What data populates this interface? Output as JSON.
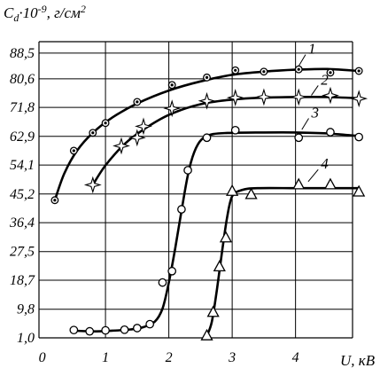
{
  "chart_data": {
    "type": "line",
    "ylabel_main": "C",
    "ylabel_sub": "d",
    "ylabel_rest": "·10",
    "ylabel_exp": "-9",
    "ylabel_units": ", г/см",
    "ylabel_units_exp": "2",
    "xlabel": "U, кВ",
    "xlim": [
      -0.05,
      4.9
    ],
    "ylim": [
      1.0,
      92.0
    ],
    "grid": true,
    "x_ticks": [
      {
        "value": 0,
        "label": "0"
      },
      {
        "value": 1,
        "label": "1"
      },
      {
        "value": 2,
        "label": "2"
      },
      {
        "value": 3,
        "label": "3"
      },
      {
        "value": 4,
        "label": "4"
      }
    ],
    "y_ticks": [
      {
        "value": 1.0,
        "label": "1,0"
      },
      {
        "value": 9.8,
        "label": "9,8"
      },
      {
        "value": 18.7,
        "label": "18,7"
      },
      {
        "value": 27.5,
        "label": "27,5"
      },
      {
        "value": 36.4,
        "label": "36,4"
      },
      {
        "value": 45.2,
        "label": "45,2"
      },
      {
        "value": 54.1,
        "label": "54,1"
      },
      {
        "value": 62.9,
        "label": "62,9"
      },
      {
        "value": 71.8,
        "label": "71,8"
      },
      {
        "value": 80.6,
        "label": "80,6"
      },
      {
        "value": 88.5,
        "label": "88,5"
      }
    ],
    "series": [
      {
        "label": "1",
        "marker": "dotted-circle",
        "label_pos": [
          4.2,
          88.3
        ],
        "label_line_to": [
          4.05,
          84.5
        ],
        "points": [
          [
            0.2,
            43.3
          ],
          [
            0.5,
            58.5
          ],
          [
            0.8,
            64.0
          ],
          [
            1.0,
            67.0
          ],
          [
            1.5,
            73.5
          ],
          [
            2.05,
            78.7
          ],
          [
            2.6,
            81.0
          ],
          [
            3.05,
            83.2
          ],
          [
            3.5,
            82.8
          ],
          [
            4.05,
            83.5
          ],
          [
            4.55,
            82.5
          ],
          [
            5.0,
            83.0
          ]
        ],
        "curve": [
          [
            0.2,
            43.3
          ],
          [
            0.35,
            51.5
          ],
          [
            0.55,
            58.5
          ],
          [
            0.8,
            64.0
          ],
          [
            1.1,
            68.6
          ],
          [
            1.5,
            73.0
          ],
          [
            2.0,
            77.0
          ],
          [
            2.5,
            79.8
          ],
          [
            3.0,
            81.8
          ],
          [
            3.5,
            82.8
          ],
          [
            4.0,
            83.4
          ],
          [
            4.5,
            83.6
          ],
          [
            5.0,
            83.0
          ]
        ]
      },
      {
        "label": "2",
        "marker": "star",
        "label_pos": [
          4.4,
          78.8
        ],
        "label_line_to": [
          4.25,
          75.5
        ],
        "points": [
          [
            0.8,
            48.0
          ],
          [
            1.25,
            60.0
          ],
          [
            1.5,
            62.5
          ],
          [
            1.6,
            66.0
          ],
          [
            2.05,
            71.5
          ],
          [
            2.6,
            73.8
          ],
          [
            3.05,
            74.8
          ],
          [
            3.5,
            75.0
          ],
          [
            4.05,
            75.0
          ],
          [
            4.55,
            75.5
          ],
          [
            5.0,
            74.5
          ]
        ],
        "curve": [
          [
            0.8,
            48.0
          ],
          [
            1.0,
            54.0
          ],
          [
            1.3,
            60.5
          ],
          [
            1.6,
            65.0
          ],
          [
            2.0,
            69.5
          ],
          [
            2.5,
            72.8
          ],
          [
            3.0,
            74.2
          ],
          [
            3.5,
            74.8
          ],
          [
            4.0,
            75.0
          ],
          [
            4.5,
            75.0
          ],
          [
            5.0,
            74.6
          ]
        ]
      },
      {
        "label": "3",
        "marker": "circle",
        "label_pos": [
          4.25,
          68.7
        ],
        "label_line_to": [
          4.1,
          65.0
        ],
        "points": [
          [
            0.5,
            3.4
          ],
          [
            0.75,
            3.0
          ],
          [
            1.0,
            3.3
          ],
          [
            1.3,
            3.5
          ],
          [
            1.5,
            4.0
          ],
          [
            1.7,
            5.2
          ],
          [
            1.9,
            18.0
          ],
          [
            2.05,
            21.5
          ],
          [
            2.2,
            40.5
          ],
          [
            2.3,
            52.5
          ],
          [
            2.6,
            62.5
          ],
          [
            3.05,
            64.8
          ],
          [
            4.05,
            62.5
          ],
          [
            4.55,
            64.2
          ],
          [
            5.0,
            62.7
          ]
        ],
        "curve": [
          [
            0.5,
            3.2
          ],
          [
            0.8,
            3.0
          ],
          [
            1.1,
            3.2
          ],
          [
            1.4,
            3.6
          ],
          [
            1.6,
            4.3
          ],
          [
            1.78,
            6.0
          ],
          [
            1.9,
            10.0
          ],
          [
            2.0,
            18.0
          ],
          [
            2.1,
            28.5
          ],
          [
            2.2,
            40.0
          ],
          [
            2.3,
            51.0
          ],
          [
            2.4,
            58.0
          ],
          [
            2.52,
            62.0
          ],
          [
            2.7,
            63.6
          ],
          [
            3.0,
            64.0
          ],
          [
            3.5,
            64.1
          ],
          [
            4.0,
            64.1
          ],
          [
            4.5,
            63.8
          ],
          [
            5.0,
            63.0
          ]
        ]
      },
      {
        "label": "4",
        "marker": "triangle",
        "label_pos": [
          4.4,
          53.0
        ],
        "label_line_to": [
          4.2,
          49.0
        ],
        "points": [
          [
            2.6,
            1.6
          ],
          [
            2.7,
            8.8
          ],
          [
            2.8,
            22.8
          ],
          [
            2.9,
            31.7
          ],
          [
            3.0,
            46.0
          ],
          [
            3.3,
            45.0
          ],
          [
            4.05,
            48.0
          ],
          [
            4.55,
            48.0
          ],
          [
            5.0,
            45.8
          ]
        ],
        "curve": [
          [
            2.6,
            1.6
          ],
          [
            2.68,
            6.0
          ],
          [
            2.76,
            16.0
          ],
          [
            2.84,
            27.5
          ],
          [
            2.92,
            38.0
          ],
          [
            3.0,
            44.5
          ],
          [
            3.15,
            46.4
          ],
          [
            3.4,
            47.0
          ],
          [
            4.0,
            47.0
          ],
          [
            4.5,
            47.0
          ],
          [
            5.0,
            47.0
          ]
        ]
      }
    ]
  }
}
